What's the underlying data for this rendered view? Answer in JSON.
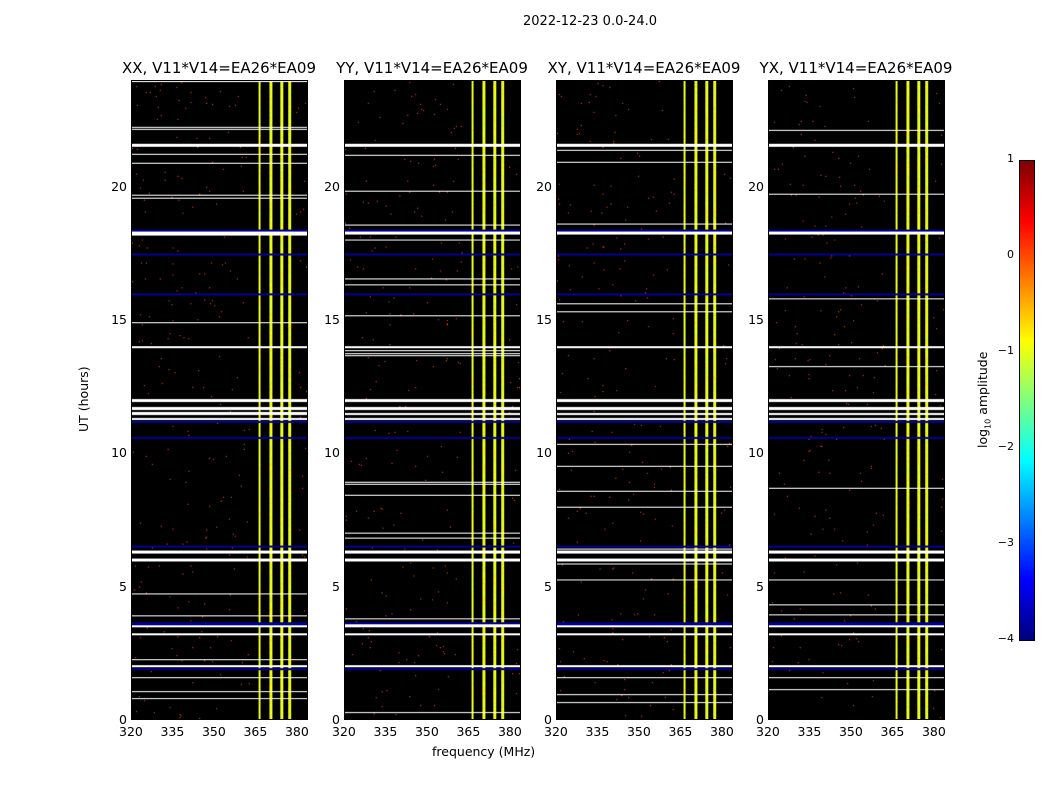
{
  "chart_data": {
    "type": "heatmap",
    "suptitle": "2022-12-23 0.0-24.0",
    "xlabel": "frequency (MHz)",
    "ylabel": "UT (hours)",
    "xlim": [
      320,
      384
    ],
    "ylim": [
      0,
      24
    ],
    "xticks": [
      "320",
      "335",
      "350",
      "365",
      "380"
    ],
    "xtick_values": [
      320,
      335,
      350,
      365,
      380
    ],
    "yticks": [
      "0",
      "5",
      "10",
      "15",
      "20"
    ],
    "ytick_values": [
      0,
      5,
      10,
      15,
      20
    ],
    "colorbar": {
      "label": "log10 amplitude",
      "label_main": "log",
      "label_sub": "10",
      "label_rest": " amplitude",
      "colormap": "jet",
      "range": [
        -4,
        1
      ],
      "ticks": [
        "1",
        "0",
        "−1",
        "−2",
        "−3",
        "−4"
      ],
      "tick_values": [
        1,
        0,
        -1,
        -2,
        -3,
        -4
      ]
    },
    "panels": [
      {
        "title": "XX, V11*V14=EA26*EA09",
        "background_level": -2.8,
        "band_level": -0.1,
        "cyan_level": -2.2
      },
      {
        "title": "YY, V11*V14=EA26*EA09",
        "background_level": -3.0,
        "band_level": -0.6,
        "cyan_level": -2.6
      },
      {
        "title": "XY, V11*V14=EA26*EA09",
        "background_level": -3.0,
        "band_level": -0.8,
        "cyan_level": -2.6
      },
      {
        "title": "YX, V11*V14=EA26*EA09",
        "background_level": -3.0,
        "band_level": -0.8,
        "cyan_level": -2.6
      }
    ],
    "rfi_band_mhz": [
      363,
      380
    ],
    "band_gaps_mhz": [
      366.5,
      370.5,
      374.5,
      377.5
    ],
    "flagged_hours": [
      2.0,
      3.2,
      3.5,
      6.0,
      6.3,
      11.3,
      11.5,
      11.7,
      12.0,
      14.0,
      18.3,
      21.6
    ],
    "dark_hours": [
      1.9,
      3.6,
      6.5,
      11.2,
      18.4,
      16.0,
      17.5,
      10.6
    ]
  }
}
